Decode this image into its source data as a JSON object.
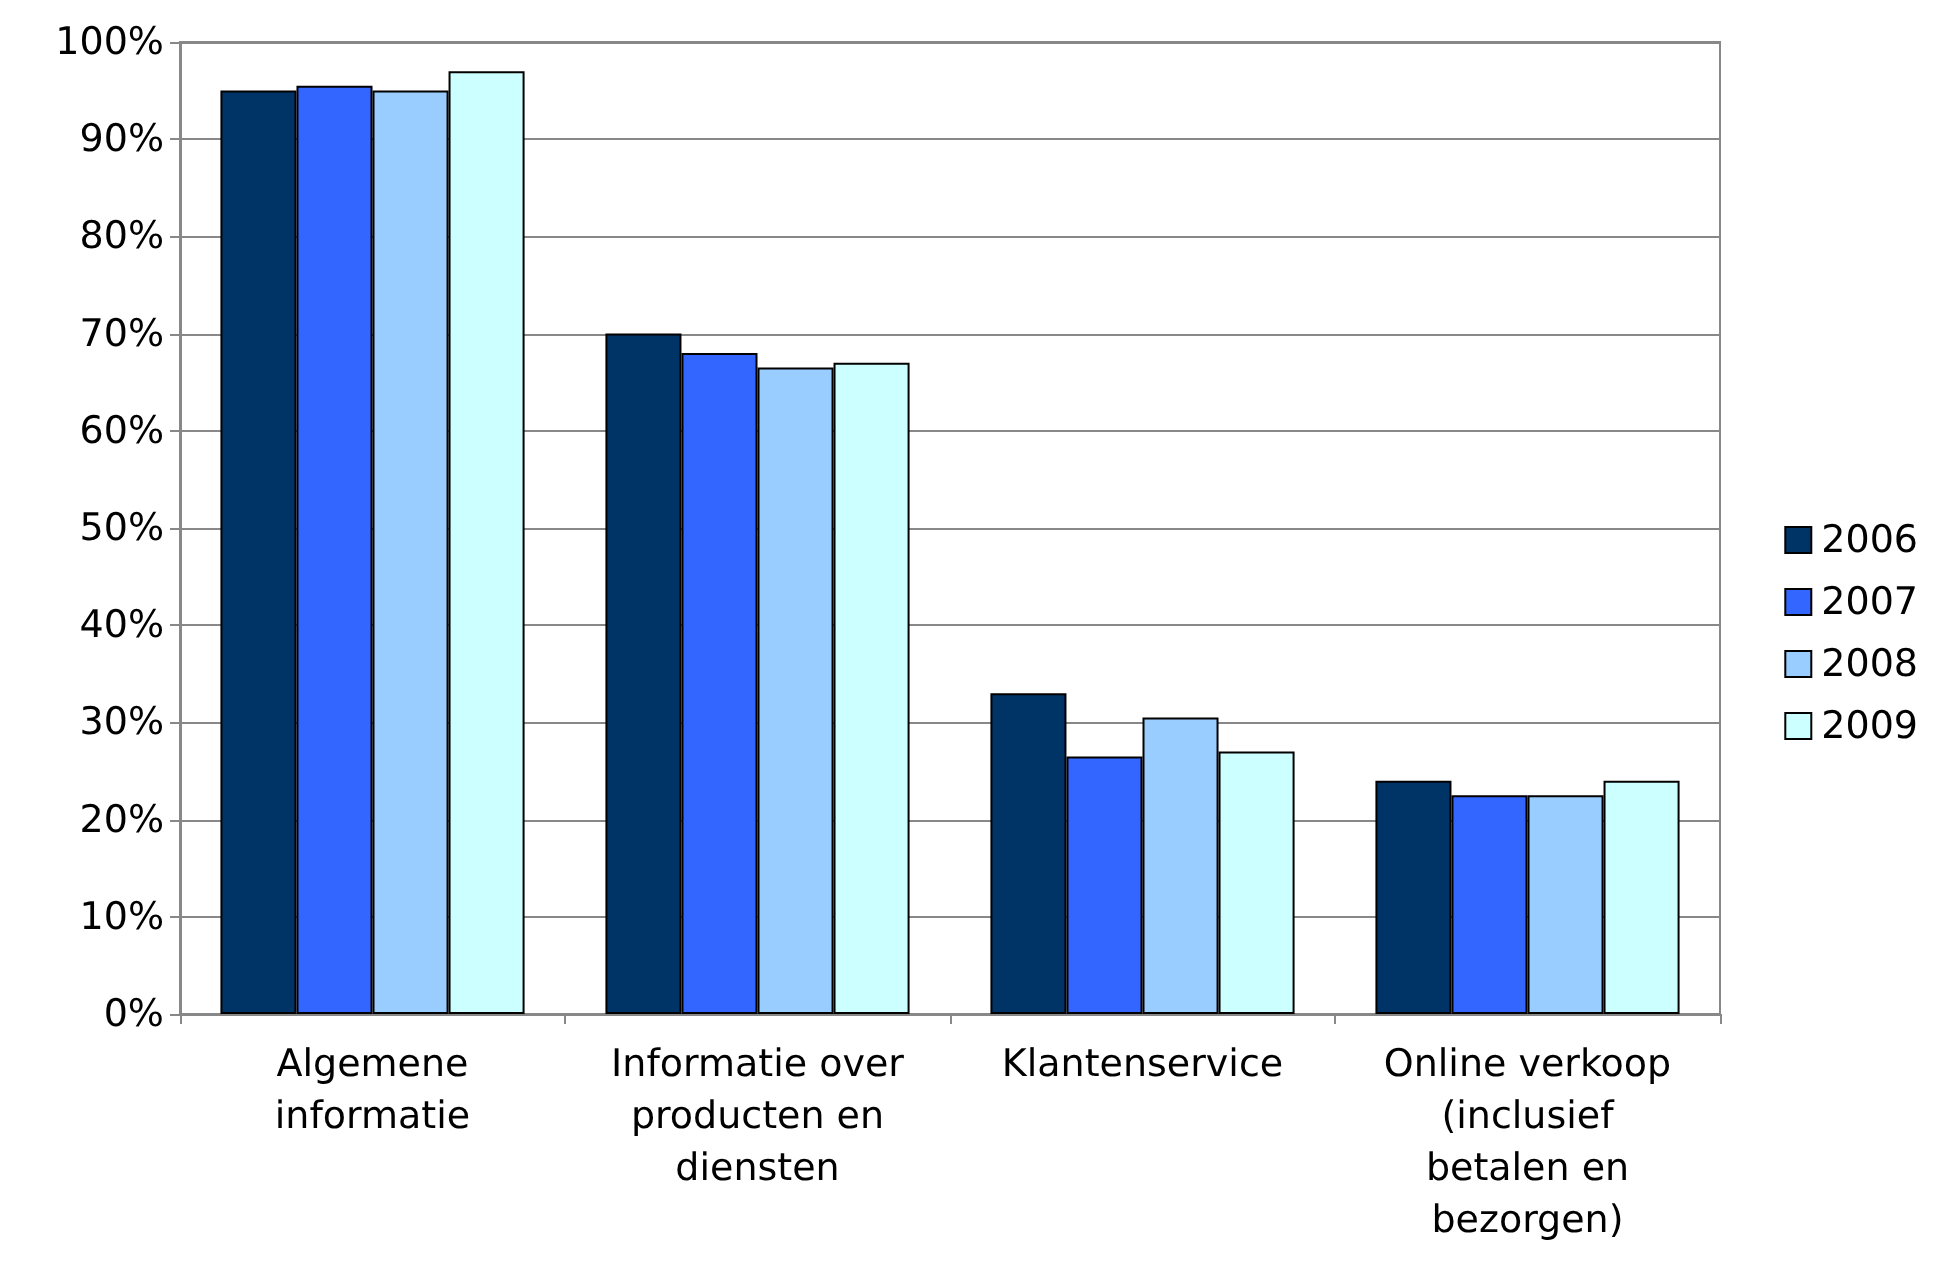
{
  "chart_data": {
    "type": "bar",
    "categories": [
      "Algemene\ninformatie",
      "Informatie over\nproducten en\ndiensten",
      "Klantenservice",
      "Online verkoop\n(inclusief\nbetalen en\nbezorgen)"
    ],
    "series": [
      {
        "name": "2006",
        "color": "#003366",
        "values": [
          95,
          70,
          33,
          24
        ]
      },
      {
        "name": "2007",
        "color": "#3366ff",
        "values": [
          95.5,
          68,
          26.5,
          22.5
        ]
      },
      {
        "name": "2008",
        "color": "#99ccff",
        "values": [
          95,
          66.5,
          30.5,
          22.5
        ]
      },
      {
        "name": "2009",
        "color": "#ccffff",
        "values": [
          97,
          67,
          27,
          24
        ]
      }
    ],
    "ylim": [
      0,
      100
    ],
    "yticks": [
      {
        "value": 0,
        "label": "0%"
      },
      {
        "value": 10,
        "label": "10%"
      },
      {
        "value": 20,
        "label": "20%"
      },
      {
        "value": 30,
        "label": "30%"
      },
      {
        "value": 40,
        "label": "40%"
      },
      {
        "value": 50,
        "label": "50%"
      },
      {
        "value": 60,
        "label": "60%"
      },
      {
        "value": 70,
        "label": "70%"
      },
      {
        "value": 80,
        "label": "80%"
      },
      {
        "value": 90,
        "label": "90%"
      },
      {
        "value": 100,
        "label": "100%"
      }
    ],
    "grid": "y",
    "legend": "right"
  }
}
